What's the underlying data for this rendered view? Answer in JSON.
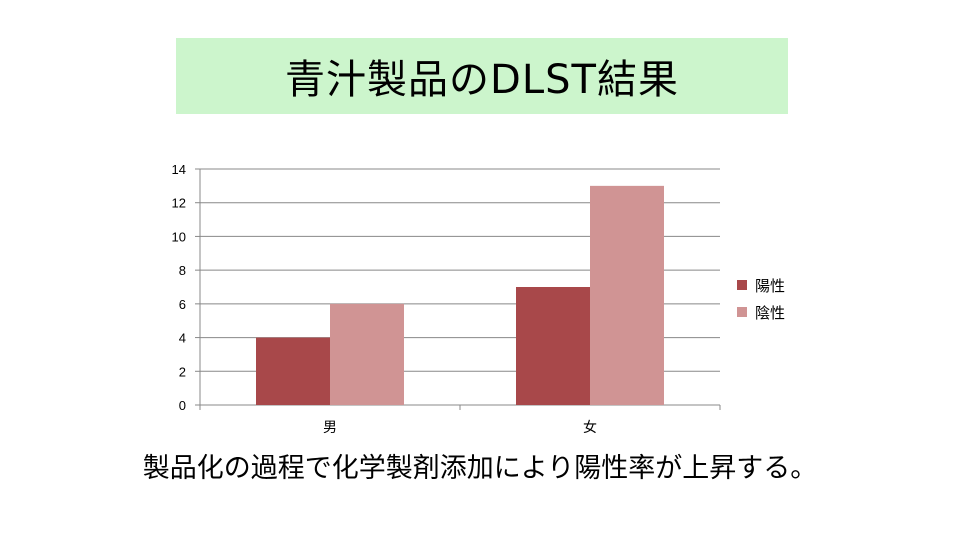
{
  "slide": {
    "title": "青汁製品のDLST結果",
    "caption": "製品化の過程で化学製剤添加により陽性率が上昇する。"
  },
  "chart_data": {
    "type": "bar",
    "categories": [
      "男",
      "女"
    ],
    "series": [
      {
        "name": "陽性",
        "values": [
          4,
          7
        ],
        "color": "#a8484a"
      },
      {
        "name": "陰性",
        "values": [
          6,
          13
        ],
        "color": "#d09494"
      }
    ],
    "ylim": [
      0,
      14
    ],
    "yticks": [
      0,
      2,
      4,
      6,
      8,
      10,
      12,
      14
    ],
    "grid": true,
    "legend": "right"
  }
}
